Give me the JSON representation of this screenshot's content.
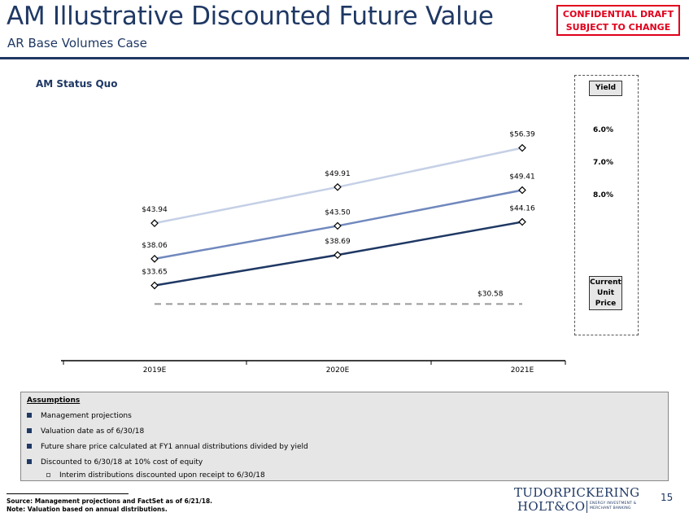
{
  "header": {
    "title": "AM Illustrative Discounted Future Value",
    "subtitle": "AR Base Volumes Case",
    "confidential_line1": "CONFIDENTIAL DRAFT",
    "confidential_line2": "SUBJECT TO CHANGE"
  },
  "chart_data": {
    "type": "line",
    "title": "AM Status Quo",
    "categories": [
      "2019E",
      "2020E",
      "2021E"
    ],
    "series": [
      {
        "name": "6.0%",
        "values": [
          43.94,
          49.91,
          56.39
        ],
        "labels": [
          "$43.94",
          "$49.91",
          "$56.39"
        ],
        "color": "#c5d0e6"
      },
      {
        "name": "7.0%",
        "values": [
          38.06,
          43.5,
          49.41
        ],
        "labels": [
          "$38.06",
          "$43.50",
          "$49.41"
        ],
        "color": "#7088bd"
      },
      {
        "name": "8.0%",
        "values": [
          33.65,
          38.69,
          44.16
        ],
        "labels": [
          "$33.65",
          "$38.69",
          "$44.16"
        ],
        "color": "#1f3864"
      }
    ],
    "reference_line": {
      "name": "Current Unit Price",
      "value": 30.58,
      "label": "$30.58",
      "color": "#999999",
      "style": "dashed"
    },
    "ylim": [
      27,
      62
    ],
    "grid": false,
    "legend_header": "Yield",
    "legend_placement": "right"
  },
  "legend": {
    "yield_header": "Yield",
    "current_price_label": [
      "Current",
      "Unit",
      "Price"
    ]
  },
  "assumptions": {
    "title": "Assumptions",
    "items": [
      "Management projections",
      "Valuation date as of 6/30/18",
      "Future share price calculated at FY1 annual distributions divided by yield",
      "Discounted to 6/30/18 at 10% cost of equity"
    ],
    "sub_items": [
      "Interim distributions discounted upon receipt to 6/30/18"
    ]
  },
  "footer": {
    "source": "Source: Management projections and FactSet as of 6/21/18.",
    "note": "Note: Valuation based on annual distributions.",
    "page_number": "15"
  },
  "logo": {
    "line1": "TUDORPICKERING",
    "line2": "HOLT&CO",
    "tag1": "ENERGY INVESTMENT &",
    "tag2": "MERCHANT BANKING"
  }
}
